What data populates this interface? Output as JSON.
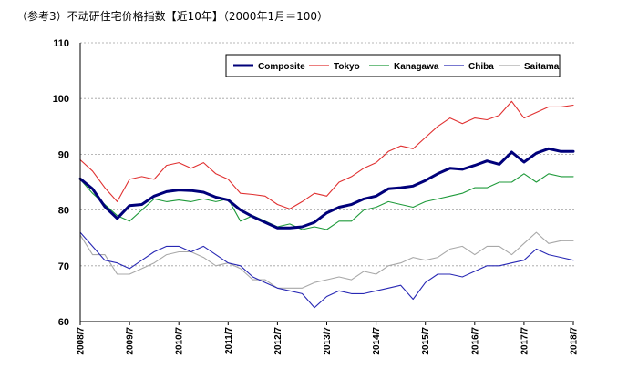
{
  "chart_data": {
    "type": "line",
    "title": "（参考3）不动研住宅价格指数【近10年】（2000年1月＝100）",
    "xlabel": "",
    "ylabel": "",
    "ylim": [
      60,
      110
    ],
    "yticks": [
      60,
      70,
      80,
      90,
      100,
      110
    ],
    "xlim": [
      "2008/7",
      "2018/7"
    ],
    "xticks": [
      "2008/7",
      "2009/7",
      "2010/7",
      "2011/7",
      "2012/7",
      "2013/7",
      "2014/7",
      "2015/7",
      "2016/7",
      "2017/7",
      "2018/7"
    ],
    "grid": true,
    "legend": "top",
    "x": [
      "2008/7",
      "2008/10",
      "2009/1",
      "2009/4",
      "2009/7",
      "2009/10",
      "2010/1",
      "2010/4",
      "2010/7",
      "2010/10",
      "2011/1",
      "2011/4",
      "2011/7",
      "2011/10",
      "2012/1",
      "2012/4",
      "2012/7",
      "2012/10",
      "2013/1",
      "2013/4",
      "2013/7",
      "2013/10",
      "2014/1",
      "2014/4",
      "2014/7",
      "2014/10",
      "2015/1",
      "2015/4",
      "2015/7",
      "2015/10",
      "2016/1",
      "2016/4",
      "2016/7",
      "2016/10",
      "2017/1",
      "2017/4",
      "2017/7",
      "2017/10",
      "2018/1",
      "2018/4",
      "2018/7"
    ],
    "series": [
      {
        "name": "Composite",
        "color": "#00007a",
        "values": [
          85.6,
          83.8,
          80.6,
          78.5,
          80.8,
          81.0,
          82.5,
          83.3,
          83.6,
          83.5,
          83.2,
          82.3,
          81.8,
          80.0,
          78.8,
          77.8,
          76.8,
          76.8,
          77.0,
          77.8,
          79.5,
          80.5,
          81.0,
          82.0,
          82.5,
          83.8,
          84.0,
          84.3,
          85.3,
          86.5,
          87.5,
          87.3,
          88.0,
          88.8,
          88.2,
          90.4,
          88.6,
          90.2,
          91.0,
          90.5,
          90.5
        ]
      },
      {
        "name": "Tokyo",
        "color": "#e03030",
        "values": [
          89.0,
          87.0,
          84.0,
          81.5,
          85.5,
          86.0,
          85.5,
          88.0,
          88.5,
          87.5,
          88.5,
          86.5,
          85.5,
          83.0,
          82.8,
          82.5,
          81.0,
          80.2,
          81.5,
          83.0,
          82.5,
          85.0,
          86.0,
          87.5,
          88.5,
          90.5,
          91.5,
          91.0,
          93.0,
          95.0,
          96.5,
          95.5,
          96.5,
          96.2,
          97.0,
          99.5,
          96.5,
          97.5,
          98.5,
          98.5,
          98.8
        ]
      },
      {
        "name": "Kanagawa",
        "color": "#1e9a3a",
        "values": [
          85.5,
          83.0,
          81.0,
          79.0,
          78.0,
          80.0,
          82.0,
          81.5,
          81.8,
          81.5,
          82.0,
          81.5,
          82.0,
          78.0,
          79.0,
          78.0,
          77.0,
          77.5,
          76.5,
          77.0,
          76.5,
          78.0,
          78.0,
          80.0,
          80.5,
          81.5,
          81.0,
          80.5,
          81.5,
          82.0,
          82.5,
          83.0,
          84.0,
          84.0,
          85.0,
          85.0,
          86.5,
          85.0,
          86.5,
          86.0,
          86.0
        ]
      },
      {
        "name": "Chiba",
        "color": "#2828b4",
        "values": [
          76.0,
          73.5,
          71.0,
          70.5,
          69.5,
          71.0,
          72.5,
          73.5,
          73.5,
          72.5,
          73.5,
          72.0,
          70.5,
          70.0,
          68.0,
          67.0,
          66.0,
          65.5,
          65.0,
          62.5,
          64.5,
          65.5,
          65.0,
          65.0,
          65.5,
          66.0,
          66.5,
          64.0,
          67.0,
          68.5,
          68.5,
          68.0,
          69.0,
          70.0,
          70.0,
          70.5,
          71.0,
          73.0,
          72.0,
          71.5,
          71.0
        ]
      },
      {
        "name": "Saitama",
        "color": "#a8a8a8",
        "values": [
          75.5,
          72.0,
          72.0,
          68.5,
          68.5,
          69.5,
          70.5,
          72.0,
          72.5,
          72.5,
          71.5,
          70.0,
          70.5,
          69.5,
          67.5,
          67.5,
          66.0,
          66.0,
          66.0,
          67.0,
          67.5,
          68.0,
          67.5,
          69.0,
          68.5,
          70.0,
          70.5,
          71.5,
          71.0,
          71.5,
          73.0,
          73.5,
          72.0,
          73.5,
          73.5,
          72.0,
          74.0,
          76.0,
          74.0,
          74.5,
          74.5
        ]
      }
    ]
  }
}
